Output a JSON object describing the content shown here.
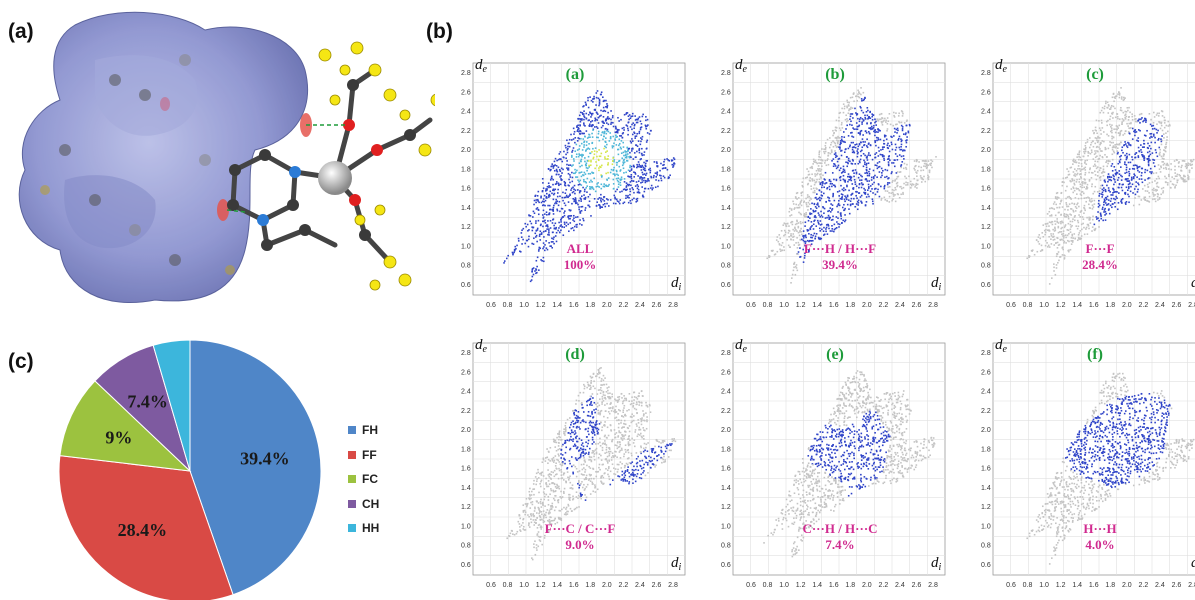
{
  "figure": {
    "panel_labels": {
      "a": "(a)",
      "b": "(b)",
      "c": "(c)"
    }
  },
  "colors": {
    "surface": "#8a91cf",
    "surface_dark": "#5b63a8",
    "spot_red": "#e2463e",
    "grey_points": "#bdbdbd",
    "blue_points": "#2f44c8",
    "title_green": "#1e9b3a",
    "caption_magenta": "#d02a8f"
  },
  "fingerprints": {
    "axis_x": "d",
    "axis_x_sub": "i",
    "axis_y": "d",
    "axis_y_sub": "e",
    "x_ticks": [
      "0.6",
      "0.8",
      "1.0",
      "1.2",
      "1.4",
      "1.6",
      "1.8",
      "2.0",
      "2.2",
      "2.4",
      "2.6",
      "2.8"
    ],
    "y_ticks": [
      "2.8",
      "2.6",
      "2.4",
      "2.2",
      "2.0",
      "1.8",
      "1.6",
      "1.4",
      "1.2",
      "1.0",
      "0.8",
      "0.6"
    ],
    "plots": [
      {
        "title": "(a)",
        "line1": "ALL",
        "line2": "100%"
      },
      {
        "title": "(b)",
        "line1": "F···H / H···F",
        "line2": "39.4%"
      },
      {
        "title": "(c)",
        "line1": "F···F",
        "line2": "28.4%"
      },
      {
        "title": "(d)",
        "line1": "F···C / C···F",
        "line2": "9.0%"
      },
      {
        "title": "(e)",
        "line1": "C···H / H···C",
        "line2": "7.4%"
      },
      {
        "title": "(f)",
        "line1": "H···H",
        "line2": "4.0%"
      }
    ]
  },
  "chart_data": {
    "type": "pie",
    "categories": [
      "FH",
      "FF",
      "FC",
      "CH",
      "HH"
    ],
    "values": [
      39.4,
      28.4,
      9,
      7.4,
      4.0
    ],
    "slice_labels": [
      "39.4%",
      "28.4%",
      "9%",
      "7.4%",
      ""
    ],
    "colors": [
      "#4f86c8",
      "#d94a45",
      "#9cc23f",
      "#7e5aa0",
      "#3cb6dc"
    ],
    "legend_position": "right"
  }
}
